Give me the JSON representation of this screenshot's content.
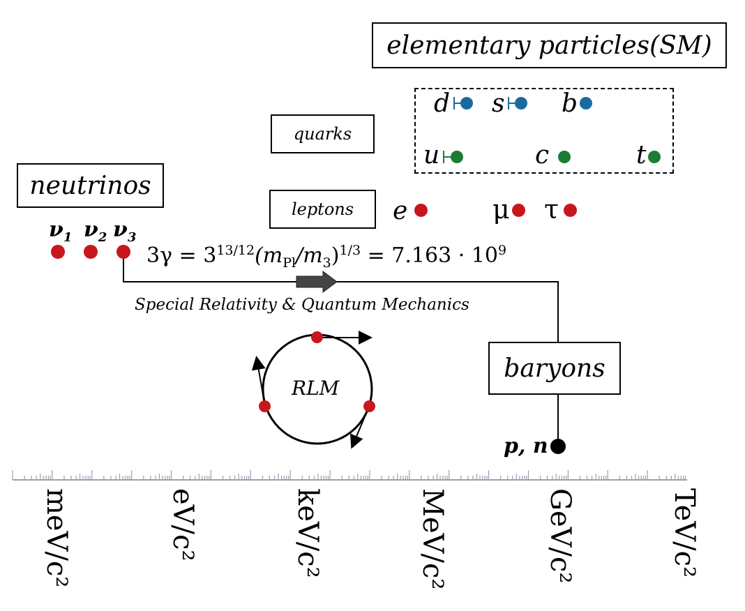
{
  "labels": {
    "sm_title_main": "elementary particles ",
    "sm_title_suffix": "(SM)",
    "quarks": "quarks",
    "leptons": "leptons",
    "neutrinos": "neutrinos",
    "baryons": "baryons",
    "rlm": "RLM",
    "sr_qm": "Special Relativity & Quantum Mechanics",
    "pn": "p, n"
  },
  "quarks": {
    "down": "d",
    "strange": "s",
    "bottom": "b",
    "up": "u",
    "charm": "c",
    "top": "t"
  },
  "leptons": {
    "electron": "e",
    "muon": "μ",
    "tau": "τ"
  },
  "neutrinos": {
    "nu1": "ν",
    "nu1_sub": "1",
    "nu2": "ν",
    "nu2_sub": "2",
    "nu3": "ν",
    "nu3_sub": "3"
  },
  "equation": {
    "lhs": "3γ = 3",
    "exp1": "13/12",
    "mid_open": "(m",
    "mpl_sub": "Pl",
    "slash": "/m",
    "m3_sub": "3",
    "mid_close": ")",
    "exp2": "1/3",
    "equals": " = 7.163 · 10",
    "exp3": "9"
  },
  "axis": {
    "units": [
      "meV/c²",
      "eV/c²",
      "keV/c²",
      "MeV/c²",
      "GeV/c²",
      "TeV/c²"
    ]
  },
  "colors": {
    "red": "#c8161d",
    "blue": "#1a6aa0",
    "green": "#1c7c34",
    "black": "#000000",
    "arrow_gray": "#444444",
    "tick_gray": "#9aa0b0"
  }
}
